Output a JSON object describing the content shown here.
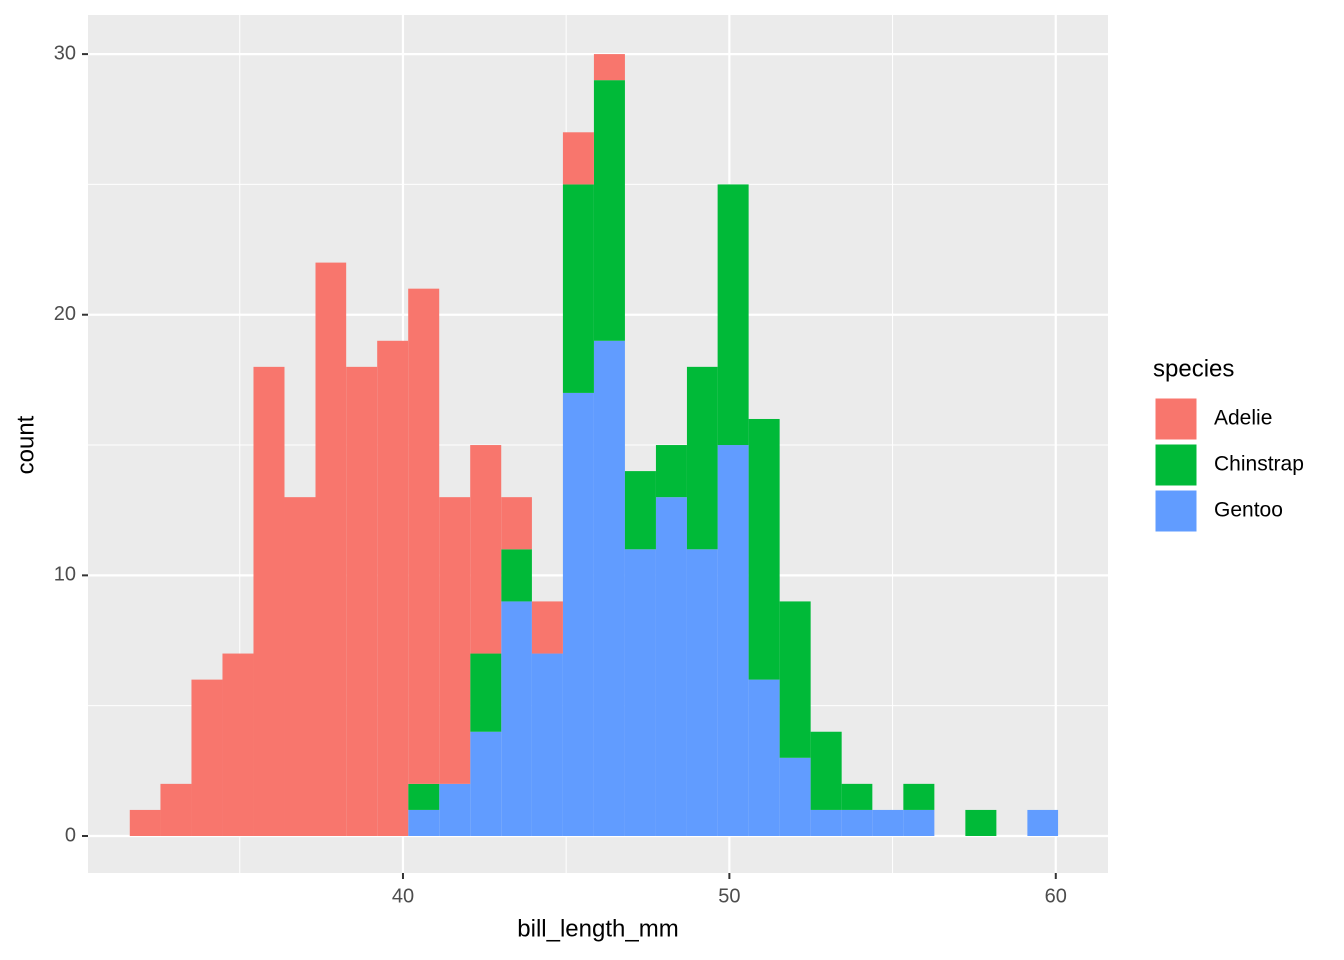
{
  "chart_data": {
    "type": "histogram",
    "stacked": true,
    "x_label": "bill_length_mm",
    "y_label": "count",
    "legend_title": "species",
    "legend_position": "right",
    "grid": true,
    "bins": [
      31.63,
      32.57,
      33.52,
      34.47,
      35.42,
      36.37,
      37.32,
      38.26,
      39.21,
      40.16,
      41.11,
      42.06,
      43.01,
      43.95,
      44.9,
      45.85,
      46.8,
      47.75,
      48.7,
      49.64,
      50.59,
      51.54,
      52.49,
      53.44,
      54.38,
      55.33,
      56.28,
      57.23,
      58.18,
      59.13,
      60.07
    ],
    "series": [
      {
        "name": "Adelie",
        "color": "#F8766D",
        "values": [
          1,
          2,
          6,
          7,
          18,
          13,
          22,
          18,
          19,
          19,
          11,
          8,
          2,
          2,
          2,
          1,
          0,
          0,
          0,
          0,
          0,
          0,
          0,
          0,
          0,
          0,
          0,
          0,
          0,
          0
        ]
      },
      {
        "name": "Chinstrap",
        "color": "#00BA38",
        "values": [
          0,
          0,
          0,
          0,
          0,
          0,
          0,
          0,
          0,
          1,
          0,
          3,
          2,
          0,
          8,
          10,
          3,
          2,
          7,
          10,
          10,
          6,
          3,
          1,
          0,
          1,
          0,
          1,
          0,
          0
        ]
      },
      {
        "name": "Gentoo",
        "color": "#619CFF",
        "values": [
          0,
          0,
          0,
          0,
          0,
          0,
          0,
          0,
          0,
          1,
          2,
          4,
          9,
          7,
          17,
          19,
          11,
          13,
          11,
          15,
          6,
          3,
          1,
          1,
          1,
          1,
          0,
          0,
          0,
          1
        ]
      }
    ],
    "xlim": [
      30.35,
      61.6
    ],
    "xticks": [
      40,
      50,
      60
    ],
    "ylim": [
      -1.42,
      31.5
    ],
    "yticks": [
      0,
      10,
      20,
      30
    ]
  }
}
